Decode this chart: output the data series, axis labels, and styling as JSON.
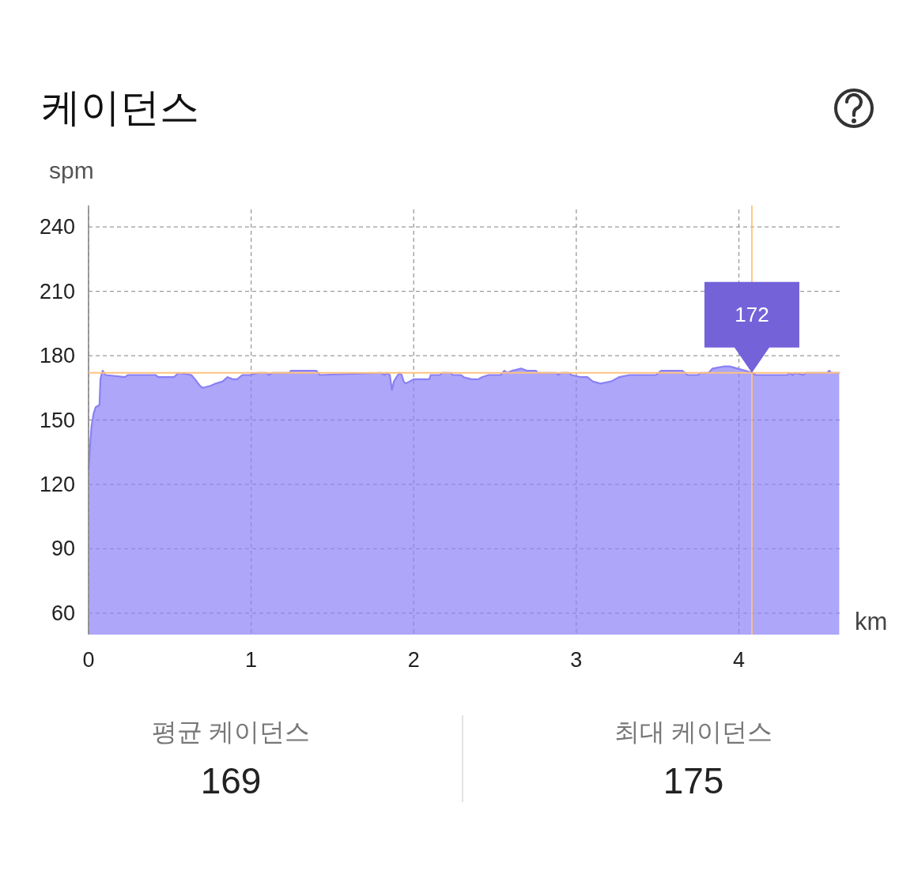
{
  "chart_data": {
    "type": "area",
    "title": "케이던스",
    "xlabel": "km",
    "ylabel": "spm",
    "x": [
      0.0,
      0.011,
      0.018,
      0.031,
      0.044,
      0.067,
      0.073,
      0.079,
      0.087,
      0.104,
      0.224,
      0.243,
      0.413,
      0.428,
      0.525,
      0.554,
      0.632,
      0.655,
      0.685,
      0.703,
      0.752,
      0.782,
      0.825,
      0.855,
      0.889,
      0.914,
      0.946,
      0.995,
      1.043,
      1.092,
      1.108,
      1.132,
      1.238,
      1.244,
      1.4,
      1.424,
      1.797,
      1.821,
      1.837,
      1.853,
      1.866,
      1.878,
      1.894,
      1.913,
      1.926,
      1.938,
      1.95,
      1.975,
      1.999,
      2.032,
      2.096,
      2.104,
      2.161,
      2.177,
      2.226,
      2.242,
      2.291,
      2.307,
      2.356,
      2.396,
      2.42,
      2.461,
      2.534,
      2.558,
      2.574,
      2.607,
      2.66,
      2.696,
      2.752,
      2.761,
      2.874,
      2.89,
      2.906,
      2.955,
      2.971,
      3.028,
      3.068,
      3.101,
      3.149,
      3.214,
      3.263,
      3.328,
      3.49,
      3.522,
      3.652,
      3.684,
      3.749,
      3.765,
      3.814,
      3.838,
      3.911,
      3.943,
      3.992,
      4.04,
      4.081,
      4.104,
      4.3,
      4.308,
      4.332,
      4.348,
      4.397,
      4.413,
      4.543,
      4.556,
      4.567,
      4.617
    ],
    "series": [
      {
        "color": "#8a80f6",
        "values": [
          127,
          140,
          147,
          153,
          156,
          157,
          169,
          171,
          173,
          171,
          170,
          171,
          171,
          170,
          170,
          172,
          171,
          169,
          166,
          165,
          166,
          167,
          168,
          170,
          169,
          169,
          171,
          171,
          172,
          172,
          171,
          172,
          172,
          173,
          173,
          171,
          172,
          171,
          172,
          171,
          164,
          168,
          170,
          172,
          171,
          168,
          167,
          168,
          169,
          169,
          169,
          171,
          171,
          172,
          172,
          171,
          171,
          170,
          169,
          169,
          170,
          171,
          171,
          173,
          172,
          173,
          174,
          173,
          173,
          172,
          172,
          171,
          172,
          172,
          171,
          170,
          170,
          168,
          167,
          168,
          170,
          171,
          171,
          173,
          173,
          171,
          171,
          172,
          172,
          174,
          175,
          175,
          174,
          173,
          172,
          171,
          171,
          172,
          171,
          172,
          171,
          172,
          172,
          173,
          172,
          172
        ]
      }
    ],
    "xlim": [
      0,
      4.62
    ],
    "ylim": [
      50,
      250
    ],
    "xticks": [
      0,
      1,
      2,
      3,
      4
    ],
    "yticks": [
      60,
      90,
      120,
      150,
      180,
      210,
      240
    ],
    "grid": true,
    "line_style": "solid",
    "ref_lines": [
      {
        "axis": "x",
        "value": 4.08,
        "color": "#ffc27f"
      },
      {
        "axis": "y",
        "value": 172,
        "color": "#ffc27f"
      }
    ],
    "annotations": [
      {
        "text": "172",
        "x": 4.08,
        "y": 172
      },
      "평균 케이던스",
      "169",
      "최대 케이던스",
      "175"
    ]
  }
}
